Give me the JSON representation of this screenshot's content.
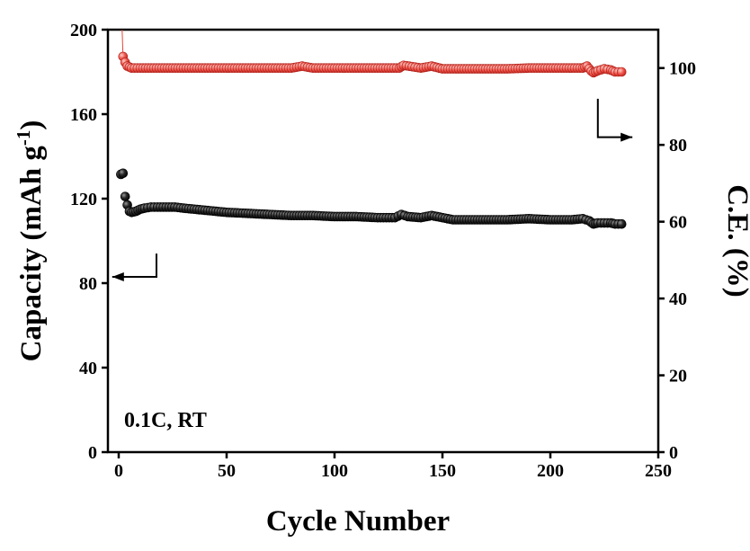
{
  "chart_data": {
    "type": "scatter",
    "title": "",
    "xlabel": "Cycle Number",
    "ylabel_left": "Capacity (mAh g",
    "ylabel_left_sup": "-1",
    "ylabel_left_close": ")",
    "ylabel_right": "C.E. (%)",
    "xlim": [
      -5,
      250
    ],
    "ylim_left": [
      0,
      200
    ],
    "ylim_right": [
      0,
      110
    ],
    "x_ticks": [
      0,
      50,
      100,
      150,
      200,
      250
    ],
    "y_left_ticks": [
      0,
      40,
      80,
      120,
      160,
      200
    ],
    "y_right_ticks": [
      0,
      20,
      40,
      60,
      80,
      100
    ],
    "annotation": "0.1C, RT",
    "grid": false,
    "series": [
      {
        "axis": "left",
        "color": "#000000",
        "marker": "sphere",
        "x": [
          1,
          2,
          3,
          4,
          5,
          6,
          8,
          10,
          12,
          15,
          18,
          22,
          26,
          30,
          35,
          40,
          45,
          50,
          60,
          70,
          80,
          90,
          100,
          110,
          120,
          128,
          131,
          134,
          140,
          145,
          150,
          155,
          160,
          170,
          180,
          190,
          200,
          210,
          215,
          218,
          220,
          222,
          225,
          228,
          230,
          233
        ],
        "values": [
          131.5,
          132,
          121,
          117,
          114,
          113.5,
          114,
          115,
          115.5,
          116,
          116,
          116,
          116,
          115.5,
          115,
          114.5,
          114,
          113.5,
          113,
          112.5,
          112,
          112,
          111.5,
          111.5,
          111,
          111,
          112.5,
          111.5,
          111,
          112,
          111,
          110,
          110,
          110,
          110,
          110.5,
          110,
          110,
          110.5,
          109.5,
          108,
          108.5,
          108.5,
          108.5,
          108,
          108
        ]
      },
      {
        "axis": "right",
        "color": "#e8453c",
        "marker": "sphere",
        "x": [
          2,
          3,
          4,
          6,
          10,
          20,
          30,
          40,
          50,
          60,
          70,
          80,
          85,
          90,
          100,
          110,
          120,
          130,
          132,
          140,
          145,
          150,
          160,
          170,
          180,
          190,
          200,
          210,
          215,
          217,
          219,
          220,
          222,
          225,
          228,
          230,
          233
        ],
        "values": [
          103,
          101.5,
          100.5,
          100,
          100,
          100,
          100,
          100,
          100,
          100,
          100,
          100,
          100.5,
          100,
          100,
          100,
          100,
          100,
          100.7,
          100,
          100.5,
          99.8,
          99.8,
          99.8,
          99.8,
          100,
          100,
          100,
          100,
          100.5,
          99.2,
          98.8,
          99.3,
          99.8,
          99.5,
          99,
          99
        ]
      }
    ],
    "arrows": [
      {
        "axis_side": "left",
        "points": [
          [
            17.5,
            94
          ],
          [
            17.5,
            83
          ],
          [
            -3,
            83
          ]
        ]
      },
      {
        "axis_side": "right",
        "points": [
          [
            222,
            92
          ],
          [
            222,
            82
          ],
          [
            238,
            82
          ]
        ]
      }
    ]
  }
}
